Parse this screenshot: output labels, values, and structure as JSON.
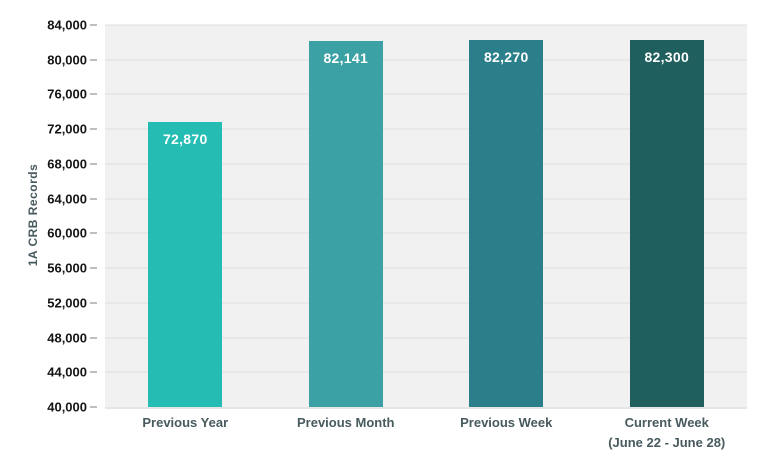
{
  "chart": {
    "plot_background": "#f1f1f1",
    "gridline_color": "#e0e0e0",
    "tick_mark_color": "#bfbfbf",
    "tick_label_color": "#141414",
    "category_label_color": "#475a5e",
    "value_label_color": "#ffffff"
  },
  "chart_data": {
    "type": "bar",
    "title": "",
    "ylabel": "1A CRB Records",
    "xlabel": "",
    "categories": [
      "Previous Year",
      "Previous Month",
      "Previous Week",
      "Current Week\n(June 22 - June 28)"
    ],
    "values": [
      72870,
      82141,
      82270,
      82300
    ],
    "value_labels": [
      "72,870",
      "82,141",
      "82,270",
      "82,300"
    ],
    "bar_colors": [
      "#24bcb3",
      "#3ba1a4",
      "#2b7f8b",
      "#1f5f5e"
    ],
    "ylim": [
      40000,
      84000
    ],
    "ytick_step": 4000,
    "grid": true,
    "legend": false,
    "value_label_position": "inside-top"
  }
}
